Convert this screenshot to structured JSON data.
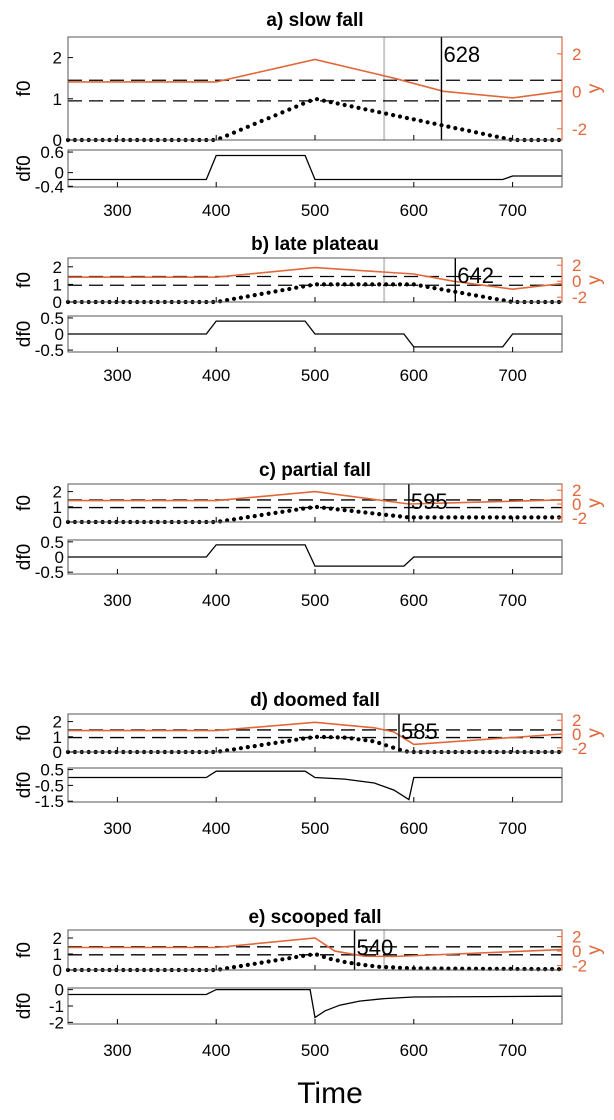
{
  "colors": {
    "f0_dots": "#000000",
    "df0_line": "#000000",
    "y_line": "#e2683c",
    "right_axis": "#e2683c",
    "dash": "#000000",
    "vline_gray": "#c8c8c8",
    "vline_black": "#000000"
  },
  "shared": {
    "xlabel": "Time",
    "xlim": [
      250,
      750
    ],
    "xticks": [
      300,
      400,
      500,
      600,
      700
    ],
    "f0_ylabel": "f0",
    "df0_ylabel": "df0",
    "y_ylabel": "y",
    "f0_ylim": [
      0,
      2.5
    ],
    "f0_yticks": [
      0,
      1,
      2
    ],
    "y_ylim": [
      -2.6,
      2.9
    ],
    "y_yticks": [
      -2,
      0,
      2
    ],
    "dashed_levels": [
      1.45,
      0.95
    ],
    "gray_vline_x": 570
  },
  "chart_data": [
    {
      "type": "line",
      "title": "a) slow fall",
      "marker_x": 628,
      "marker_label": "628",
      "df0_ylim": [
        -0.42,
        0.66
      ],
      "df0_yticks": [
        -0.4,
        0,
        0.6
      ],
      "df0_yticklabels": [
        "-0.4",
        "0",
        "0.6"
      ],
      "f0_points": [
        [
          250,
          0
        ],
        [
          400,
          0
        ],
        [
          500,
          1
        ],
        [
          700,
          0
        ],
        [
          750,
          0
        ]
      ],
      "df0_points": [
        [
          250,
          -0.2
        ],
        [
          390,
          -0.2
        ],
        [
          400,
          0.5
        ],
        [
          490,
          0.5
        ],
        [
          500,
          -0.2
        ],
        [
          690,
          -0.2
        ],
        [
          700,
          -0.1
        ],
        [
          750,
          -0.1
        ]
      ],
      "y_points": [
        [
          250,
          0.5
        ],
        [
          400,
          0.5
        ],
        [
          500,
          1.7
        ],
        [
          580,
          0.7
        ],
        [
          630,
          0
        ],
        [
          700,
          -0.35
        ],
        [
          750,
          0
        ]
      ]
    },
    {
      "type": "line",
      "title": "b) late plateau",
      "marker_x": 642,
      "marker_label": "642",
      "df0_ylim": [
        -0.56,
        0.56
      ],
      "df0_yticks": [
        -0.5,
        0,
        0.5
      ],
      "df0_yticklabels": [
        "-0.5",
        "0",
        "0.5"
      ],
      "f0_points": [
        [
          250,
          0
        ],
        [
          400,
          0
        ],
        [
          500,
          1
        ],
        [
          600,
          1
        ],
        [
          700,
          0
        ],
        [
          750,
          0
        ]
      ],
      "df0_points": [
        [
          250,
          0
        ],
        [
          390,
          0
        ],
        [
          400,
          0.4
        ],
        [
          490,
          0.4
        ],
        [
          500,
          0
        ],
        [
          590,
          0
        ],
        [
          600,
          -0.4
        ],
        [
          690,
          -0.4
        ],
        [
          700,
          0
        ],
        [
          750,
          0
        ]
      ],
      "y_points": [
        [
          250,
          0.5
        ],
        [
          400,
          0.5
        ],
        [
          500,
          1.7
        ],
        [
          600,
          0.9
        ],
        [
          640,
          0
        ],
        [
          700,
          -1
        ],
        [
          750,
          -0.3
        ]
      ]
    },
    {
      "type": "line",
      "title": "c) partial fall",
      "marker_x": 595,
      "marker_label": "595",
      "df0_ylim": [
        -0.56,
        0.56
      ],
      "df0_yticks": [
        -0.5,
        0,
        0.5
      ],
      "df0_yticklabels": [
        "-0.5",
        "0",
        "0.5"
      ],
      "f0_points": [
        [
          250,
          0
        ],
        [
          400,
          0
        ],
        [
          500,
          1
        ],
        [
          595,
          0.3
        ],
        [
          750,
          0.3
        ]
      ],
      "df0_points": [
        [
          250,
          0
        ],
        [
          390,
          0
        ],
        [
          400,
          0.4
        ],
        [
          490,
          0.4
        ],
        [
          500,
          -0.3
        ],
        [
          590,
          -0.3
        ],
        [
          600,
          0
        ],
        [
          750,
          0
        ]
      ],
      "y_points": [
        [
          250,
          0.5
        ],
        [
          400,
          0.5
        ],
        [
          500,
          1.8
        ],
        [
          595,
          0
        ],
        [
          750,
          0.6
        ]
      ]
    },
    {
      "type": "line",
      "title": "d) doomed fall",
      "marker_x": 585,
      "marker_label": "585",
      "df0_ylim": [
        -1.55,
        0.6
      ],
      "df0_yticks": [
        0.5,
        -0.5,
        -1.5
      ],
      "df0_yticklabels": [
        "0.5",
        "-0.5",
        "-1.5"
      ],
      "f0_points": [
        [
          250,
          0
        ],
        [
          400,
          0
        ],
        [
          500,
          1
        ],
        [
          530,
          0.95
        ],
        [
          560,
          0.7
        ],
        [
          590,
          0.05
        ],
        [
          600,
          0
        ],
        [
          750,
          0
        ]
      ],
      "df0_points": [
        [
          250,
          0
        ],
        [
          390,
          0
        ],
        [
          400,
          0.4
        ],
        [
          490,
          0.4
        ],
        [
          500,
          0
        ],
        [
          530,
          -0.1
        ],
        [
          560,
          -0.35
        ],
        [
          580,
          -0.8
        ],
        [
          595,
          -1.4
        ],
        [
          600,
          0
        ],
        [
          750,
          0
        ]
      ],
      "y_points": [
        [
          250,
          0.5
        ],
        [
          400,
          0.5
        ],
        [
          500,
          1.7
        ],
        [
          560,
          0.9
        ],
        [
          580,
          0.3
        ],
        [
          600,
          -1.5
        ],
        [
          650,
          -1
        ],
        [
          750,
          0
        ]
      ]
    },
    {
      "type": "line",
      "title": "e) scooped fall",
      "marker_x": 540,
      "marker_label": "540",
      "df0_ylim": [
        -2.1,
        0.1
      ],
      "df0_yticks": [
        0,
        -1,
        -2
      ],
      "df0_yticklabels": [
        "0",
        "-1",
        "-2"
      ],
      "f0_points": [
        [
          250,
          0
        ],
        [
          400,
          0
        ],
        [
          500,
          1
        ],
        [
          515,
          0.7
        ],
        [
          530,
          0.5
        ],
        [
          545,
          0.35
        ],
        [
          565,
          0.2
        ],
        [
          600,
          0.1
        ],
        [
          750,
          0.05
        ]
      ],
      "df0_points": [
        [
          250,
          -0.3
        ],
        [
          390,
          -0.3
        ],
        [
          400,
          0
        ],
        [
          495,
          0
        ],
        [
          500,
          -1.7
        ],
        [
          510,
          -1.3
        ],
        [
          525,
          -0.95
        ],
        [
          545,
          -0.7
        ],
        [
          570,
          -0.55
        ],
        [
          600,
          -0.45
        ],
        [
          750,
          -0.4
        ]
      ],
      "y_points": [
        [
          250,
          0.5
        ],
        [
          400,
          0.5
        ],
        [
          500,
          1.8
        ],
        [
          520,
          0
        ],
        [
          550,
          -0.7
        ],
        [
          580,
          -0.75
        ],
        [
          750,
          0.2
        ]
      ]
    }
  ]
}
